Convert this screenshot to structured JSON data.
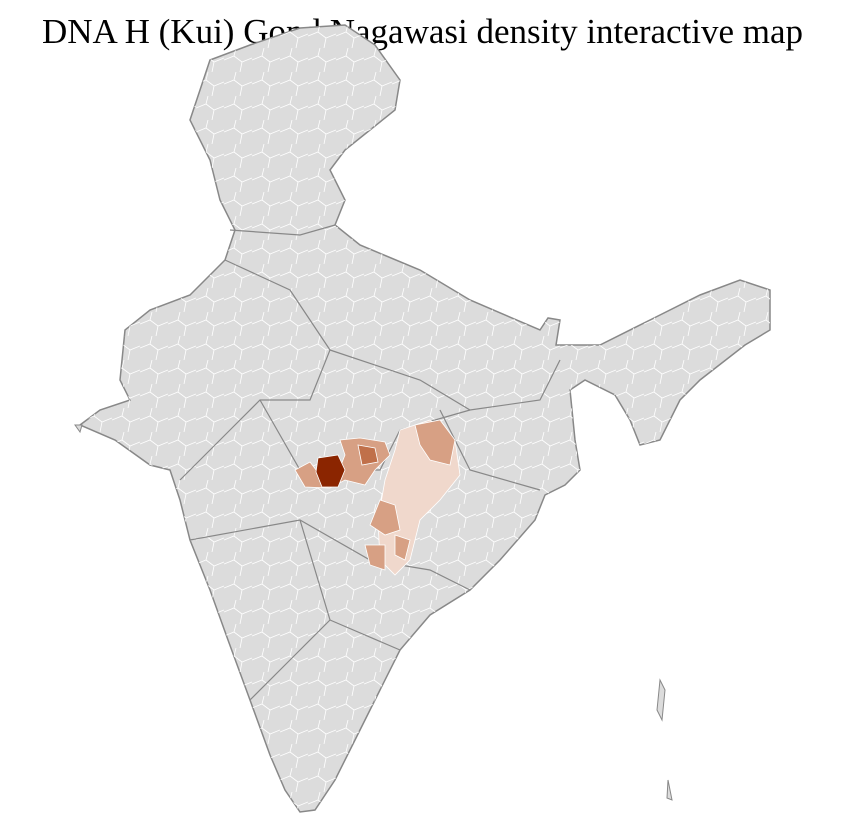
{
  "title": "DNA H (Kui) Gond Nagawasi density interactive map",
  "colors": {
    "land": "#dcdcdc",
    "district_border": "#ffffff",
    "state_border": "#888888",
    "density_highest": "#8b2500",
    "density_high": "#c0704a",
    "density_medium": "#d7a084",
    "density_low": "#f0d8cc"
  }
}
